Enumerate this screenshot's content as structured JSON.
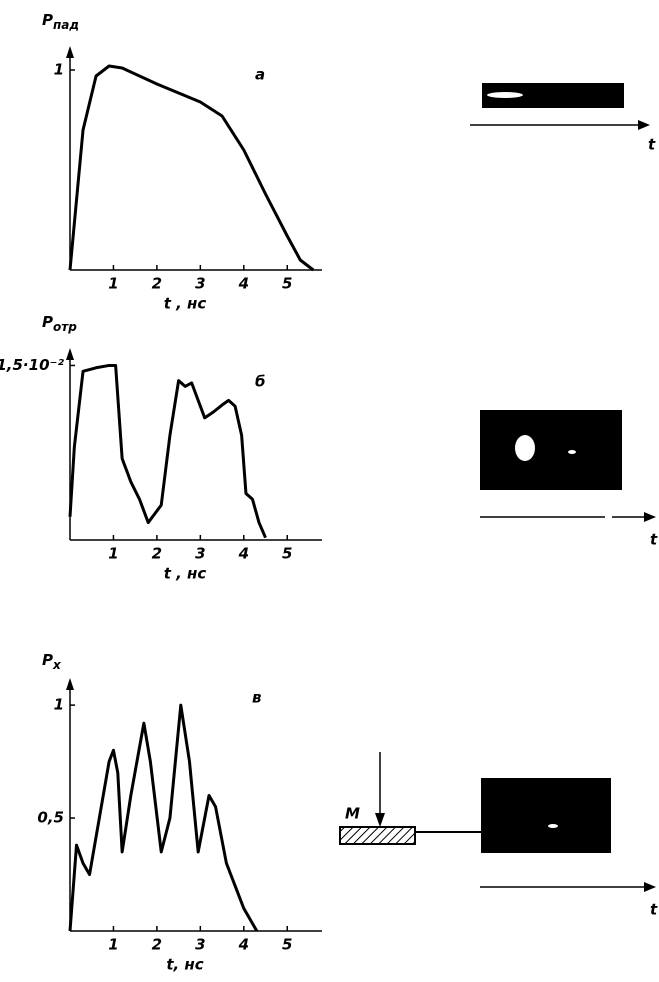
{
  "chart_data": [
    {
      "type": "line",
      "panel": "а",
      "ylabel": "P",
      "ylabel_sub": "пад",
      "xlabel": "t , нс",
      "color": "#000000",
      "x": [
        0,
        0.3,
        0.6,
        0.9,
        1.2,
        2,
        3,
        3.5,
        4,
        4.5,
        5,
        5.3,
        5.6
      ],
      "values": [
        0,
        0.7,
        0.97,
        1.02,
        1.01,
        0.93,
        0.84,
        0.77,
        0.6,
        0.38,
        0.17,
        0.05,
        0
      ],
      "xlim": [
        0,
        5.8
      ],
      "ylim": [
        0,
        1.12
      ],
      "xticks": [
        1,
        2,
        3,
        4,
        5
      ],
      "yticks": [
        1
      ],
      "streak_axis_label": "t"
    },
    {
      "type": "line",
      "panel": "б",
      "ylabel": "P",
      "ylabel_sub": "отр",
      "xlabel": "t , нс",
      "color": "#000000",
      "x": [
        0,
        0.1,
        0.3,
        0.6,
        0.9,
        1.05,
        1.2,
        1.4,
        1.6,
        1.8,
        1.9,
        2.1,
        2.3,
        2.5,
        2.65,
        2.8,
        3.0,
        3.1,
        3.3,
        3.5,
        3.65,
        3.8,
        3.95,
        4.05,
        4.2,
        4.35,
        4.5
      ],
      "values": [
        0.002,
        0.008,
        0.0145,
        0.0148,
        0.015,
        0.015,
        0.007,
        0.005,
        0.0035,
        0.0015,
        0.002,
        0.003,
        0.009,
        0.0137,
        0.0132,
        0.0135,
        0.0115,
        0.0105,
        0.011,
        0.0116,
        0.012,
        0.0115,
        0.009,
        0.004,
        0.0035,
        0.0015,
        0.0002
      ],
      "xlim": [
        0,
        5.8
      ],
      "ylim": [
        0,
        0.0165
      ],
      "xticks": [
        1,
        2,
        3,
        4,
        5
      ],
      "yticks": [
        {
          "value": 0.015,
          "label": "1,5·10⁻²"
        }
      ],
      "streak_axis_label": "t"
    },
    {
      "type": "line",
      "panel": "в",
      "ylabel": "P",
      "ylabel_sub": "x",
      "xlabel": "t, нс",
      "color": "#000000",
      "x": [
        0,
        0.15,
        0.3,
        0.45,
        0.9,
        1.0,
        1.1,
        1.2,
        1.4,
        1.7,
        1.85,
        2.1,
        2.3,
        2.55,
        2.75,
        2.95,
        3.2,
        3.35,
        3.6,
        4.0,
        4.3
      ],
      "values": [
        0,
        0.38,
        0.3,
        0.25,
        0.75,
        0.8,
        0.7,
        0.35,
        0.6,
        0.92,
        0.75,
        0.35,
        0.5,
        1.0,
        0.75,
        0.35,
        0.6,
        0.55,
        0.3,
        0.1,
        0
      ],
      "xlim": [
        0,
        5.8
      ],
      "ylim": [
        0,
        1.12
      ],
      "xticks": [
        1,
        2,
        3,
        4,
        5
      ],
      "yticks": [
        {
          "value": 0.5,
          "label": "0,5"
        },
        1
      ],
      "streak_axis_label": "t",
      "marker_label": "M"
    }
  ]
}
